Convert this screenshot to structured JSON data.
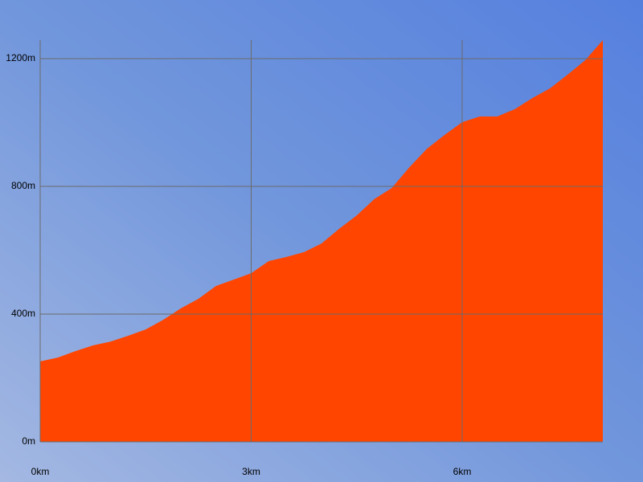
{
  "chart_data": {
    "type": "area",
    "x": [
      0,
      0.25,
      0.5,
      0.75,
      1.0,
      1.25,
      1.5,
      1.75,
      2.0,
      2.25,
      2.5,
      2.75,
      3.0,
      3.25,
      3.5,
      3.75,
      4.0,
      4.25,
      4.5,
      4.75,
      5.0,
      5.25,
      5.5,
      5.75,
      6.0,
      6.25,
      6.5,
      6.75,
      7.0,
      7.25,
      7.5,
      7.75,
      8.0
    ],
    "values": [
      252,
      264,
      284,
      302,
      314,
      332,
      352,
      382,
      418,
      448,
      488,
      508,
      528,
      566,
      579,
      594,
      621,
      667,
      709,
      760,
      795,
      860,
      918,
      961,
      1001,
      1019,
      1019,
      1042,
      1077,
      1107,
      1150,
      1195,
      1258
    ],
    "color": "#ff4500",
    "xlim": [
      0,
      8
    ],
    "ylim": [
      0,
      1258
    ],
    "xticks": [
      {
        "value": 0,
        "label": "0km"
      },
      {
        "value": 3,
        "label": "3km"
      },
      {
        "value": 6,
        "label": "6km"
      }
    ],
    "yticks": [
      {
        "value": 0,
        "label": "0m"
      },
      {
        "value": 400,
        "label": "400m"
      },
      {
        "value": 800,
        "label": "800m"
      },
      {
        "value": 1200,
        "label": "1200m"
      }
    ],
    "grid": true
  }
}
